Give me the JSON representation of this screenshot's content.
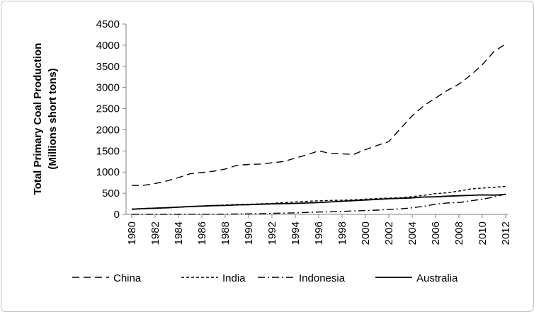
{
  "chart_data": {
    "type": "line",
    "title": "",
    "xlabel": "",
    "ylabel_lines": [
      "Total Primary Coal Production",
      "(Millions short tons)"
    ],
    "ylim": [
      0,
      4500
    ],
    "yticks": [
      0,
      500,
      1000,
      1500,
      2000,
      2500,
      3000,
      3500,
      4000,
      4500
    ],
    "xlim": [
      1980,
      2012
    ],
    "xticks": [
      1980,
      1982,
      1984,
      1986,
      1988,
      1990,
      1992,
      1994,
      1996,
      1998,
      2000,
      2002,
      2004,
      2006,
      2008,
      2010,
      2012
    ],
    "grid": false,
    "legend_position": "bottom",
    "x": [
      1980,
      1981,
      1982,
      1983,
      1984,
      1985,
      1986,
      1987,
      1988,
      1989,
      1990,
      1991,
      1992,
      1993,
      1994,
      1995,
      1996,
      1997,
      1998,
      1999,
      2000,
      2001,
      2002,
      2003,
      2004,
      2005,
      2006,
      2007,
      2008,
      2009,
      2010,
      2011,
      2012
    ],
    "series": [
      {
        "name": "China",
        "dash": "10,6",
        "values": [
          685,
          685,
          730,
          790,
          870,
          960,
          990,
          1020,
          1070,
          1160,
          1180,
          1190,
          1220,
          1250,
          1330,
          1410,
          1500,
          1440,
          1430,
          1420,
          1530,
          1630,
          1720,
          2030,
          2330,
          2570,
          2750,
          2930,
          3080,
          3290,
          3540,
          3850,
          4030
        ]
      },
      {
        "name": "India",
        "dash": "4,3",
        "values": [
          125,
          140,
          150,
          160,
          170,
          180,
          195,
          210,
          220,
          235,
          240,
          250,
          260,
          280,
          295,
          310,
          320,
          330,
          335,
          345,
          360,
          375,
          385,
          395,
          420,
          450,
          490,
          510,
          550,
          600,
          620,
          640,
          660
        ]
      },
      {
        "name": "Indonesia",
        "dash": "10,4,2,4",
        "values": [
          1,
          1,
          1,
          2,
          2,
          3,
          3,
          4,
          5,
          10,
          12,
          15,
          25,
          30,
          35,
          45,
          55,
          60,
          70,
          80,
          90,
          100,
          115,
          130,
          155,
          190,
          240,
          270,
          280,
          320,
          360,
          410,
          480
        ]
      },
      {
        "name": "Australia",
        "dash": "",
        "values": [
          120,
          135,
          145,
          155,
          170,
          185,
          195,
          205,
          210,
          225,
          230,
          240,
          250,
          255,
          260,
          270,
          280,
          295,
          310,
          325,
          340,
          355,
          370,
          380,
          390,
          410,
          415,
          430,
          440,
          450,
          460,
          455,
          470
        ]
      }
    ]
  }
}
